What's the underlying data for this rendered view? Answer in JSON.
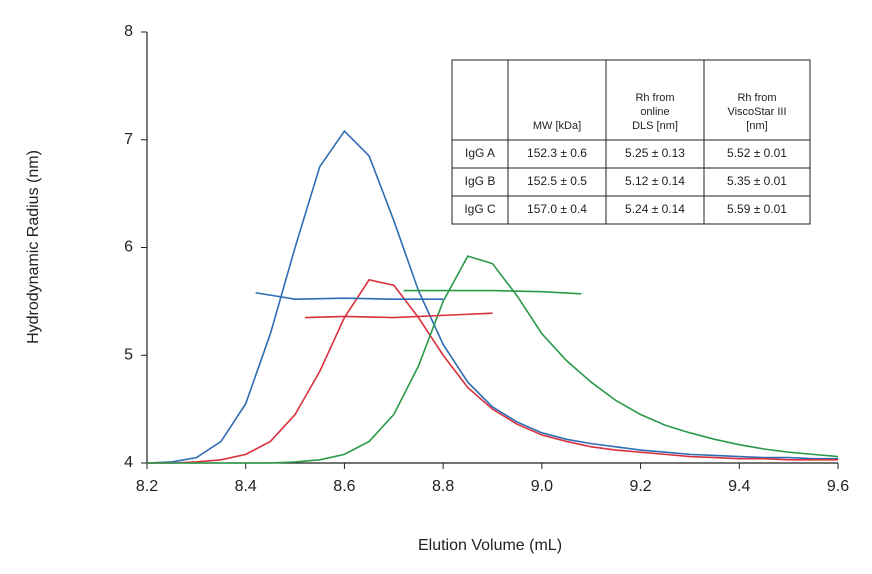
{
  "chart_data": {
    "type": "line",
    "x_label": "Elution Volume (mL)",
    "y_label": "Hydrodynamic Radius (nm)",
    "xlim": [
      8.2,
      9.6
    ],
    "xticks": [
      8.2,
      8.4,
      8.6,
      8.8,
      {
        "value": 9,
        "label": "9.0"
      },
      9.2,
      9.4,
      9.6
    ],
    "ylim": [
      4,
      8
    ],
    "yticks": [
      4,
      5,
      6,
      7,
      8
    ],
    "series": [
      {
        "color": "#2e6db4",
        "x": [
          8.2,
          8.25,
          8.3,
          8.35,
          8.4,
          8.45,
          8.5,
          8.55,
          8.6,
          8.65,
          8.7,
          8.75,
          8.8,
          8.85,
          8.9,
          8.95,
          9.0,
          9.05,
          9.1,
          9.15,
          9.2,
          9.25,
          9.3,
          9.35,
          9.4,
          9.45,
          9.5,
          9.55,
          9.6
        ],
        "values": [
          4.0,
          4.01,
          4.05,
          4.2,
          4.55,
          5.2,
          6.0,
          6.75,
          7.08,
          6.85,
          6.25,
          5.6,
          5.1,
          4.75,
          4.52,
          4.38,
          4.28,
          4.22,
          4.18,
          4.15,
          4.12,
          4.1,
          4.08,
          4.07,
          4.06,
          4.05,
          4.05,
          4.04,
          4.04
        ]
      },
      {
        "color": "#d9313d",
        "x": [
          8.2,
          8.25,
          8.3,
          8.35,
          8.4,
          8.45,
          8.5,
          8.55,
          8.6,
          8.65,
          8.7,
          8.75,
          8.8,
          8.85,
          8.9,
          8.95,
          9.0,
          9.05,
          9.1,
          9.15,
          9.2,
          9.25,
          9.3,
          9.35,
          9.4,
          9.45,
          9.5,
          9.55,
          9.6
        ],
        "values": [
          4.0,
          4.0,
          4.01,
          4.03,
          4.08,
          4.2,
          4.45,
          4.85,
          5.35,
          5.7,
          5.65,
          5.35,
          5.0,
          4.7,
          4.5,
          4.36,
          4.26,
          4.2,
          4.15,
          4.12,
          4.1,
          4.08,
          4.06,
          4.05,
          4.04,
          4.04,
          4.03,
          4.03,
          4.03
        ]
      },
      {
        "color": "#2a9a4a",
        "x": [
          8.2,
          8.25,
          8.3,
          8.35,
          8.4,
          8.45,
          8.5,
          8.55,
          8.6,
          8.65,
          8.7,
          8.75,
          8.8,
          8.85,
          8.9,
          8.95,
          9.0,
          9.05,
          9.1,
          9.15,
          9.2,
          9.25,
          9.3,
          9.35,
          9.4,
          9.45,
          9.5,
          9.55,
          9.6
        ],
        "values": [
          4.0,
          4.0,
          4.0,
          4.0,
          4.0,
          4.0,
          4.01,
          4.03,
          4.08,
          4.2,
          4.45,
          4.9,
          5.5,
          5.92,
          5.85,
          5.55,
          5.2,
          4.95,
          4.75,
          4.58,
          4.45,
          4.35,
          4.28,
          4.22,
          4.17,
          4.13,
          4.1,
          4.08,
          4.06
        ]
      },
      {
        "color": "#2e6db4",
        "x": [
          8.42,
          8.5,
          8.6,
          8.7,
          8.8
        ],
        "values": [
          5.58,
          5.52,
          5.53,
          5.52,
          5.52
        ]
      },
      {
        "color": "#d9313d",
        "x": [
          8.52,
          8.6,
          8.7,
          8.8,
          8.9
        ],
        "values": [
          5.35,
          5.36,
          5.35,
          5.37,
          5.39
        ]
      },
      {
        "color": "#2a9a4a",
        "x": [
          8.72,
          8.8,
          8.9,
          9.0,
          9.08
        ],
        "values": [
          5.6,
          5.6,
          5.6,
          5.59,
          5.57
        ]
      }
    ],
    "table": {
      "header": [
        [],
        [
          "MW [kDa]"
        ],
        [
          "Rh from",
          "online",
          "DLS [nm]"
        ],
        [
          "Rh from",
          "ViscoStar III",
          "[nm]"
        ]
      ],
      "rows": [
        [
          "IgG A",
          "152.3 ± 0.6",
          "5.25 ± 0.13",
          "5.52 ± 0.01"
        ],
        [
          "IgG B",
          "152.5 ± 0.5",
          "5.12 ± 0.14",
          "5.35 ± 0.01"
        ],
        [
          "IgG C",
          "157.0 ± 0.4",
          "5.24 ± 0.14",
          "5.59 ± 0.01"
        ]
      ]
    }
  }
}
